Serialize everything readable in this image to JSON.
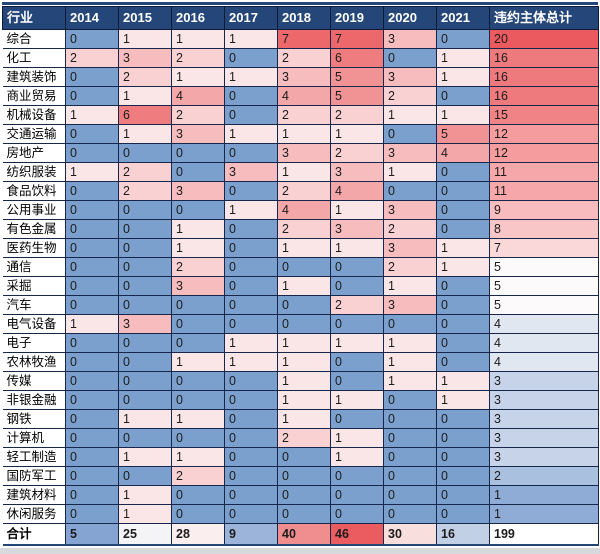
{
  "chart_data": {
    "type": "heatmap",
    "columns": [
      "行业",
      "2014",
      "2015",
      "2016",
      "2017",
      "2018",
      "2019",
      "2020",
      "2021",
      "违约主体总计"
    ],
    "x": [
      "2014",
      "2015",
      "2016",
      "2017",
      "2018",
      "2019",
      "2020",
      "2021"
    ],
    "rows": [
      {
        "label": "综合",
        "values": [
          0,
          1,
          1,
          1,
          7,
          7,
          3,
          0
        ],
        "total": 20
      },
      {
        "label": "化工",
        "values": [
          2,
          3,
          2,
          0,
          2,
          6,
          0,
          1
        ],
        "total": 16
      },
      {
        "label": "建筑装饰",
        "values": [
          0,
          2,
          1,
          1,
          3,
          5,
          3,
          1
        ],
        "total": 16
      },
      {
        "label": "商业贸易",
        "values": [
          0,
          1,
          4,
          0,
          4,
          5,
          2,
          0
        ],
        "total": 16
      },
      {
        "label": "机械设备",
        "values": [
          1,
          6,
          2,
          0,
          2,
          2,
          1,
          1
        ],
        "total": 15
      },
      {
        "label": "交通运输",
        "values": [
          0,
          1,
          3,
          1,
          1,
          1,
          0,
          5
        ],
        "total": 12
      },
      {
        "label": "房地产",
        "values": [
          0,
          0,
          0,
          0,
          3,
          2,
          3,
          4
        ],
        "total": 12
      },
      {
        "label": "纺织服装",
        "values": [
          1,
          2,
          0,
          3,
          1,
          3,
          1,
          0
        ],
        "total": 11
      },
      {
        "label": "食品饮料",
        "values": [
          0,
          2,
          3,
          0,
          2,
          4,
          0,
          0
        ],
        "total": 11
      },
      {
        "label": "公用事业",
        "values": [
          0,
          0,
          0,
          1,
          4,
          1,
          3,
          0
        ],
        "total": 9
      },
      {
        "label": "有色金属",
        "values": [
          0,
          0,
          1,
          0,
          2,
          3,
          2,
          0
        ],
        "total": 8
      },
      {
        "label": "医药生物",
        "values": [
          0,
          0,
          1,
          0,
          1,
          1,
          3,
          1
        ],
        "total": 7
      },
      {
        "label": "通信",
        "values": [
          0,
          0,
          2,
          0,
          0,
          0,
          2,
          1
        ],
        "total": 5
      },
      {
        "label": "采掘",
        "values": [
          0,
          0,
          3,
          0,
          1,
          0,
          1,
          0
        ],
        "total": 5
      },
      {
        "label": "汽车",
        "values": [
          0,
          0,
          0,
          0,
          0,
          2,
          3,
          0
        ],
        "total": 5
      },
      {
        "label": "电气设备",
        "values": [
          1,
          3,
          0,
          0,
          0,
          0,
          0,
          0
        ],
        "total": 4
      },
      {
        "label": "电子",
        "values": [
          0,
          0,
          0,
          1,
          1,
          1,
          1,
          0
        ],
        "total": 4
      },
      {
        "label": "农林牧渔",
        "values": [
          0,
          0,
          1,
          1,
          1,
          0,
          1,
          0
        ],
        "total": 4
      },
      {
        "label": "传媒",
        "values": [
          0,
          0,
          0,
          0,
          1,
          0,
          1,
          1
        ],
        "total": 3
      },
      {
        "label": "非银金融",
        "values": [
          0,
          0,
          0,
          0,
          1,
          1,
          0,
          1
        ],
        "total": 3
      },
      {
        "label": "钢铁",
        "values": [
          0,
          1,
          1,
          0,
          1,
          0,
          0,
          0
        ],
        "total": 3
      },
      {
        "label": "计算机",
        "values": [
          0,
          0,
          0,
          0,
          2,
          1,
          0,
          0
        ],
        "total": 3
      },
      {
        "label": "轻工制造",
        "values": [
          0,
          1,
          1,
          0,
          0,
          1,
          0,
          0
        ],
        "total": 3
      },
      {
        "label": "国防军工",
        "values": [
          0,
          0,
          2,
          0,
          0,
          0,
          0,
          0
        ],
        "total": 2
      },
      {
        "label": "建筑材料",
        "values": [
          0,
          1,
          0,
          0,
          0,
          0,
          0,
          0
        ],
        "total": 1
      },
      {
        "label": "休闲服务",
        "values": [
          0,
          1,
          0,
          0,
          0,
          0,
          0,
          0
        ],
        "total": 1
      }
    ],
    "footer": {
      "label": "合计",
      "values": [
        5,
        25,
        28,
        9,
        40,
        46,
        30,
        16
      ],
      "total": 199
    },
    "legend_position": "none",
    "grid": true
  },
  "colors": {
    "header_bg": "#254679",
    "header_border": "#0d1b38",
    "header_text": "#ffffff",
    "grid_border": "#17264b",
    "cell_text": "#1c1c1c",
    "zero_blue": "#7ca0cd",
    "grid_scale": [
      [
        1,
        "#fbe6e7"
      ],
      [
        7,
        "#ec686b"
      ]
    ],
    "total_scale": [
      [
        1,
        "#8facd6"
      ],
      [
        5,
        "#fcfafa"
      ],
      [
        8,
        "#f9c6c8"
      ],
      [
        12,
        "#f49c9e"
      ],
      [
        16,
        "#ef7a7d"
      ],
      [
        20,
        "#ea5a5e"
      ]
    ],
    "footer_scale": [
      [
        5,
        "#86a4d1"
      ],
      [
        26.5,
        "#fcfafa"
      ],
      [
        46,
        "#eb5c60"
      ]
    ],
    "grand_total_bg": "#ffffff",
    "top_bar": "#254679",
    "bottom_strip": "#d8d9dd"
  }
}
